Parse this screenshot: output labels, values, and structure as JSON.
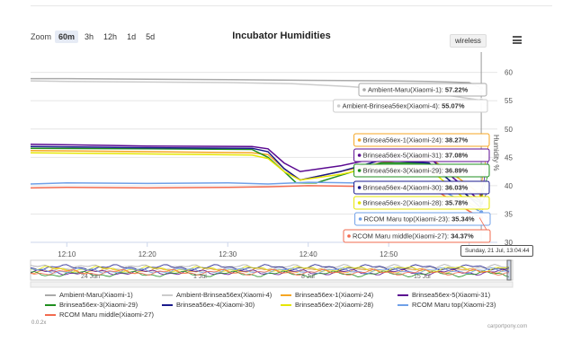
{
  "zoom": {
    "label": "Zoom",
    "buttons": [
      "60m",
      "3h",
      "12h",
      "1d",
      "5d"
    ],
    "selected": "60m"
  },
  "title": "Incubator Humidities",
  "wireless_label": "wireless",
  "chart_data": {
    "type": "line",
    "title": "Incubator Humidities",
    "ylabel": "Humidity %",
    "xlabel": "",
    "x_ticks": [
      "12:10",
      "12:20",
      "12:30",
      "12:40",
      "12:50",
      "13:"
    ],
    "x_tick_minutes": [
      10,
      20,
      30,
      40,
      50,
      60
    ],
    "y_ticks": [
      30,
      35,
      40,
      45,
      50,
      55,
      60
    ],
    "ylim": [
      30,
      62
    ],
    "xlim_minutes": [
      5.5,
      63.5
    ],
    "grid": true,
    "series": [
      {
        "name": "Ambient-Maru(Xiaomi-1)",
        "color": "#aaaaaa",
        "x": [
          5.5,
          10,
          20,
          30,
          40,
          50,
          55,
          60,
          61.5
        ],
        "y": [
          58.9,
          58.9,
          58.8,
          58.7,
          58.6,
          58.5,
          58.4,
          58.2,
          57.22
        ]
      },
      {
        "name": "Ambient-Brinsea56ex(Xiaomi-4)",
        "color": "#cccccc",
        "x": [
          5.5,
          10,
          20,
          30,
          38,
          45,
          50,
          55,
          58,
          61.5
        ],
        "y": [
          58.5,
          58.4,
          58.3,
          58.2,
          58.0,
          57.5,
          57.0,
          56.3,
          55.8,
          55.07
        ]
      },
      {
        "name": "Brinsea56ex-1(Xiaomi-24)",
        "color": "#f5a623",
        "x": [
          5.5,
          20,
          33,
          35,
          37,
          39,
          44,
          49,
          55,
          60,
          61.5
        ],
        "y": [
          46.2,
          46.0,
          45.8,
          45.5,
          43.0,
          41.0,
          42.5,
          44.0,
          45.0,
          40.0,
          38.27
        ]
      },
      {
        "name": "Brinsea56ex-5(Xiaomi-31)",
        "color": "#5b0a91",
        "x": [
          5.5,
          20,
          33,
          35,
          37,
          39,
          44,
          49,
          55,
          60,
          61.5
        ],
        "y": [
          47.3,
          47.0,
          46.9,
          46.5,
          44.0,
          42.5,
          43.5,
          45.0,
          45.0,
          39.0,
          37.08
        ]
      },
      {
        "name": "Brinsea56ex-3(Xiaomi-29)",
        "color": "#1f8f1f",
        "x": [
          5.5,
          20,
          33,
          35,
          37,
          38.5,
          41,
          49,
          55,
          60,
          61.5
        ],
        "y": [
          46.6,
          46.5,
          46.4,
          45.0,
          42.5,
          40.5,
          40.5,
          44.0,
          44.0,
          38.0,
          36.89
        ]
      },
      {
        "name": "Brinsea56ex-4(Xiaomi-30)",
        "color": "#1a1a8c",
        "x": [
          5.5,
          20,
          33,
          35,
          37,
          39,
          44,
          49,
          55,
          60,
          61.5
        ],
        "y": [
          46.9,
          46.7,
          46.6,
          46.0,
          43.0,
          41.0,
          42.5,
          44.5,
          44.0,
          38.0,
          36.03
        ]
      },
      {
        "name": "Brinsea56ex-2(Xiaomi-28)",
        "color": "#e6e600",
        "x": [
          5.5,
          20,
          33,
          35,
          37,
          39,
          44,
          49,
          55,
          60,
          61.5
        ],
        "y": [
          45.8,
          45.6,
          45.4,
          44.8,
          42.5,
          41.0,
          42.0,
          43.5,
          43.0,
          37.0,
          35.78
        ]
      },
      {
        "name": "RCOM Maru top(Xiaomi-23)",
        "color": "#6fa0e8",
        "x": [
          5.5,
          10,
          20,
          30,
          35,
          40,
          50,
          55,
          60,
          61.5
        ],
        "y": [
          40.3,
          40.5,
          40.4,
          40.5,
          40.3,
          40.6,
          40.4,
          40.5,
          36.5,
          35.34
        ]
      },
      {
        "name": "RCOM Maru middle(Xiaomi-27)",
        "color": "#f26b4f",
        "x": [
          5.5,
          10,
          20,
          30,
          35,
          40,
          50,
          55,
          60,
          61.5
        ],
        "y": [
          39.6,
          39.7,
          39.6,
          39.7,
          39.8,
          40.0,
          39.8,
          39.9,
          35.5,
          34.37
        ]
      }
    ]
  },
  "navigator": {
    "dates": [
      "24 Jun",
      "1 Jul",
      "8 Jul",
      "15 Jul"
    ]
  },
  "tooltips": [
    {
      "label": "Ambient-Maru(Xiaomi-1):",
      "value": "57.22%",
      "color": "#aaaaaa",
      "border": "#aaaaaa"
    },
    {
      "label": "Ambient-Brinsea56ex(Xiaomi-4):",
      "value": "55.07%",
      "color": "#cccccc",
      "border": "#cccccc"
    },
    {
      "label": "Brinsea56ex-1(Xiaomi-24):",
      "value": "38.27%",
      "color": "#f5a623",
      "border": "#f5a623"
    },
    {
      "label": "Brinsea56ex-5(Xiaomi-31):",
      "value": "37.08%",
      "color": "#5b0a91",
      "border": "#5b0a91"
    },
    {
      "label": "Brinsea56ex-3(Xiaomi-29):",
      "value": "36.89%",
      "color": "#1f8f1f",
      "border": "#1f8f1f"
    },
    {
      "label": "Brinsea56ex-4(Xiaomi-30):",
      "value": "36.03%",
      "color": "#1a1a8c",
      "border": "#1a1a8c"
    },
    {
      "label": "Brinsea56ex-2(Xiaomi-28):",
      "value": "35.78%",
      "color": "#e6e600",
      "border": "#e6e600"
    },
    {
      "label": "RCOM Maru top(Xiaomi-23):",
      "value": "35.34%",
      "color": "#6fa0e8",
      "border": "#6fa0e8"
    },
    {
      "label": "RCOM Maru middle(Xiaomi-27):",
      "value": "34.37%",
      "color": "#f26b4f",
      "border": "#f26b4f"
    }
  ],
  "tooltip_timestamp": "Sunday, 21 Jul, 13:04:44",
  "version": "0.0.2x",
  "credit": "carportpony.com"
}
